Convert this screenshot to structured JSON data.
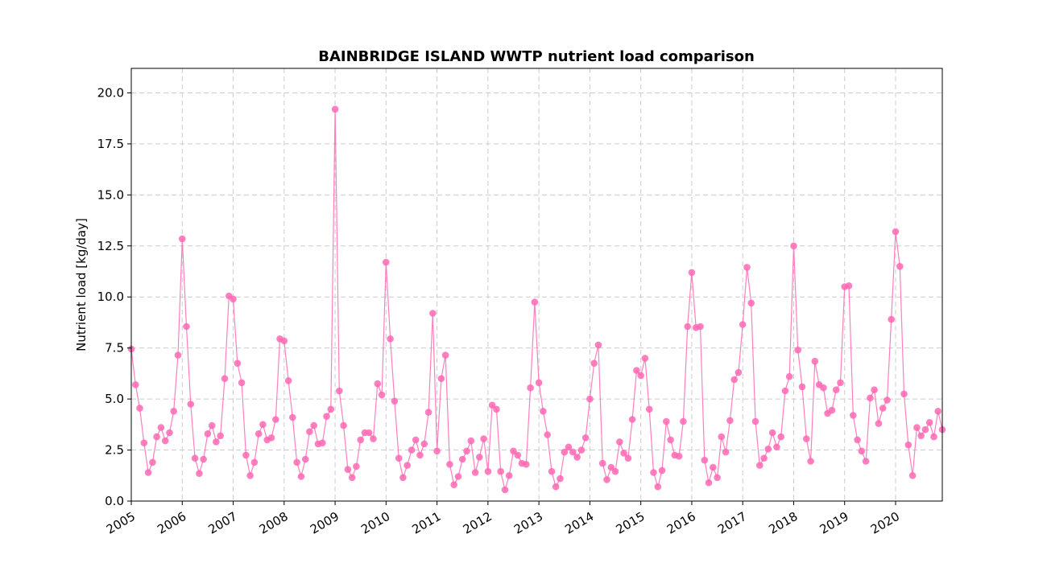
{
  "chart_data": {
    "type": "line",
    "title": "BAINBRIDGE ISLAND WWTP nutrient load comparison",
    "xlabel": "",
    "ylabel": "Nutrient load [kg/day]",
    "ylim": [
      0,
      21.2
    ],
    "xlim": [
      "2005-01",
      "2020-12"
    ],
    "y_ticks": [
      "0.0",
      "2.5",
      "5.0",
      "7.5",
      "10.0",
      "12.5",
      "15.0",
      "17.5",
      "20.0"
    ],
    "x_ticks": [
      "2005",
      "2006",
      "2007",
      "2008",
      "2009",
      "2010",
      "2011",
      "2012",
      "2013",
      "2014",
      "2015",
      "2016",
      "2017",
      "2018",
      "2019",
      "2020"
    ],
    "grid": true,
    "color": "#ff69b4",
    "x": [
      "2005-01",
      "2005-02",
      "2005-03",
      "2005-04",
      "2005-05",
      "2005-06",
      "2005-07",
      "2005-08",
      "2005-09",
      "2005-10",
      "2005-11",
      "2005-12",
      "2006-01",
      "2006-02",
      "2006-03",
      "2006-04",
      "2006-05",
      "2006-06",
      "2006-07",
      "2006-08",
      "2006-09",
      "2006-10",
      "2006-11",
      "2006-12",
      "2007-01",
      "2007-02",
      "2007-03",
      "2007-04",
      "2007-05",
      "2007-06",
      "2007-07",
      "2007-08",
      "2007-09",
      "2007-10",
      "2007-11",
      "2007-12",
      "2008-01",
      "2008-02",
      "2008-03",
      "2008-04",
      "2008-05",
      "2008-06",
      "2008-07",
      "2008-08",
      "2008-09",
      "2008-10",
      "2008-11",
      "2008-12",
      "2009-01",
      "2009-02",
      "2009-03",
      "2009-04",
      "2009-05",
      "2009-06",
      "2009-07",
      "2009-08",
      "2009-09",
      "2009-10",
      "2009-11",
      "2009-12",
      "2010-01",
      "2010-02",
      "2010-03",
      "2010-04",
      "2010-05",
      "2010-06",
      "2010-07",
      "2010-08",
      "2010-09",
      "2010-10",
      "2010-11",
      "2010-12",
      "2011-01",
      "2011-02",
      "2011-03",
      "2011-04",
      "2011-05",
      "2011-06",
      "2011-07",
      "2011-08",
      "2011-09",
      "2011-10",
      "2011-11",
      "2011-12",
      "2012-01",
      "2012-02",
      "2012-03",
      "2012-04",
      "2012-05",
      "2012-06",
      "2012-07",
      "2012-08",
      "2012-09",
      "2012-10",
      "2012-11",
      "2012-12",
      "2013-01",
      "2013-02",
      "2013-03",
      "2013-04",
      "2013-05",
      "2013-06",
      "2013-07",
      "2013-08",
      "2013-09",
      "2013-10",
      "2013-11",
      "2013-12",
      "2014-01",
      "2014-02",
      "2014-03",
      "2014-04",
      "2014-05",
      "2014-06",
      "2014-07",
      "2014-08",
      "2014-09",
      "2014-10",
      "2014-11",
      "2014-12",
      "2015-01",
      "2015-02",
      "2015-03",
      "2015-04",
      "2015-05",
      "2015-06",
      "2015-07",
      "2015-08",
      "2015-09",
      "2015-10",
      "2015-11",
      "2015-12",
      "2016-01",
      "2016-02",
      "2016-03",
      "2016-04",
      "2016-05",
      "2016-06",
      "2016-07",
      "2016-08",
      "2016-09",
      "2016-10",
      "2016-11",
      "2016-12",
      "2017-01",
      "2017-02",
      "2017-03",
      "2017-04",
      "2017-05",
      "2017-06",
      "2017-07",
      "2017-08",
      "2017-09",
      "2017-10",
      "2017-11",
      "2017-12",
      "2018-01",
      "2018-02",
      "2018-03",
      "2018-04",
      "2018-05",
      "2018-06",
      "2018-07",
      "2018-08",
      "2018-09",
      "2018-10",
      "2018-11",
      "2018-12",
      "2019-01",
      "2019-02",
      "2019-03",
      "2019-04",
      "2019-05",
      "2019-06",
      "2019-07",
      "2019-08",
      "2019-09",
      "2019-10",
      "2019-11",
      "2019-12",
      "2020-01",
      "2020-02",
      "2020-03",
      "2020-04",
      "2020-05",
      "2020-06",
      "2020-07",
      "2020-08",
      "2020-09",
      "2020-10",
      "2020-11",
      "2020-12"
    ],
    "series": [
      {
        "values": [
          7.45,
          5.7,
          4.55,
          2.85,
          1.4,
          1.9,
          3.15,
          3.6,
          2.95,
          3.35,
          4.4,
          7.15,
          12.85,
          8.55,
          4.75,
          2.1,
          1.35,
          2.05,
          3.3,
          3.7,
          2.9,
          3.2,
          6.0,
          10.05,
          9.9,
          6.75,
          5.8,
          2.25,
          1.25,
          1.9,
          3.3,
          3.75,
          3.0,
          3.1,
          4.0,
          7.95,
          7.85,
          5.9,
          4.1,
          1.9,
          1.2,
          2.05,
          3.4,
          3.7,
          2.8,
          2.85,
          4.15,
          4.5,
          19.2,
          5.4,
          3.7,
          1.55,
          1.15,
          1.7,
          3.0,
          3.35,
          3.35,
          3.05,
          5.75,
          5.2,
          11.7,
          7.95,
          4.9,
          2.1,
          1.15,
          1.75,
          2.5,
          3.0,
          2.25,
          2.8,
          4.35,
          9.2,
          2.45,
          6.0,
          7.15,
          1.8,
          0.8,
          1.2,
          2.05,
          2.45,
          2.95,
          1.4,
          2.15,
          3.05,
          1.45,
          4.7,
          4.5,
          1.45,
          0.55,
          1.25,
          2.45,
          2.25,
          1.85,
          1.8,
          5.55,
          9.75,
          5.8,
          4.4,
          3.25,
          1.45,
          0.7,
          1.1,
          2.4,
          2.65,
          2.4,
          2.15,
          2.5,
          3.1,
          5.0,
          6.75,
          7.65,
          1.85,
          1.05,
          1.65,
          1.45,
          2.9,
          2.35,
          2.1,
          4.0,
          6.4,
          6.15,
          7.0,
          4.5,
          1.4,
          0.7,
          1.5,
          3.9,
          3.0,
          2.25,
          2.2,
          3.9,
          8.55,
          11.2,
          8.5,
          8.55,
          2.0,
          0.9,
          1.65,
          1.15,
          3.15,
          2.4,
          3.95,
          5.95,
          6.3,
          8.65,
          11.45,
          9.7,
          3.9,
          1.75,
          2.1,
          2.55,
          3.35,
          2.65,
          3.15,
          5.4,
          6.1,
          12.5,
          7.4,
          5.6,
          3.05,
          1.95,
          6.85,
          5.7,
          5.55,
          4.3,
          4.45,
          5.45,
          5.8,
          10.5,
          10.55,
          4.2,
          3.0,
          2.45,
          1.95,
          5.05,
          5.45,
          3.8,
          4.55,
          4.95,
          8.9,
          13.2,
          11.5,
          5.25,
          2.75,
          1.25,
          3.6,
          3.2,
          3.5,
          3.85,
          3.15,
          4.4,
          3.5
        ]
      }
    ]
  }
}
